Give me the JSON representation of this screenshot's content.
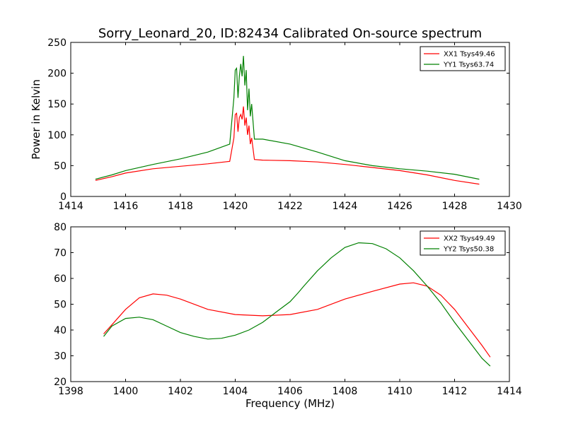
{
  "chart_data": [
    {
      "type": "line",
      "title": "Sorry_Leonard_20, ID:82434 Calibrated On-source spectrum",
      "xlabel": "",
      "ylabel": "Power in Kelvin",
      "xlim": [
        1414,
        1430
      ],
      "ylim": [
        0,
        250
      ],
      "xticks": [
        "1414",
        "1416",
        "1418",
        "1420",
        "1422",
        "1424",
        "1426",
        "1428",
        "1430"
      ],
      "yticks": [
        "0",
        "50",
        "100",
        "150",
        "200",
        "250"
      ],
      "grid": false,
      "legend_position": "top-right",
      "series": [
        {
          "name": "XX1 Tsys49.46",
          "color": "#ff0000",
          "x": [
            1414.9,
            1415.5,
            1416,
            1417,
            1418,
            1419,
            1419.8,
            1419.95,
            1420.0,
            1420.05,
            1420.1,
            1420.15,
            1420.2,
            1420.25,
            1420.3,
            1420.35,
            1420.4,
            1420.45,
            1420.5,
            1420.55,
            1420.6,
            1420.7,
            1421,
            1422,
            1423,
            1424,
            1425,
            1426,
            1427,
            1428,
            1428.9
          ],
          "values": [
            26,
            32,
            38,
            45,
            49,
            53,
            57,
            95,
            133,
            135,
            105,
            128,
            133,
            125,
            146,
            115,
            128,
            100,
            115,
            85,
            95,
            60,
            59,
            58,
            56,
            52,
            47,
            42,
            35,
            26,
            20
          ]
        },
        {
          "name": "YY1 Tsys63.74",
          "color": "#008000",
          "x": [
            1414.9,
            1415.5,
            1416,
            1417,
            1418,
            1419,
            1419.8,
            1419.95,
            1420.0,
            1420.05,
            1420.1,
            1420.15,
            1420.2,
            1420.25,
            1420.3,
            1420.35,
            1420.4,
            1420.45,
            1420.5,
            1420.55,
            1420.6,
            1420.7,
            1421,
            1422,
            1423,
            1424,
            1425,
            1426,
            1427,
            1428,
            1428.9
          ],
          "values": [
            28,
            35,
            42,
            52,
            61,
            72,
            85,
            160,
            205,
            208,
            160,
            195,
            215,
            195,
            228,
            180,
            205,
            140,
            175,
            130,
            150,
            93,
            93,
            85,
            72,
            58,
            50,
            45,
            41,
            36,
            28
          ]
        }
      ]
    },
    {
      "type": "line",
      "title": "",
      "xlabel": "Frequency (MHz)",
      "ylabel": "",
      "xlim": [
        1398,
        1414
      ],
      "ylim": [
        20,
        80
      ],
      "xticks": [
        "1398",
        "1400",
        "1402",
        "1404",
        "1406",
        "1408",
        "1410",
        "1412",
        "1414"
      ],
      "yticks": [
        "20",
        "30",
        "40",
        "50",
        "60",
        "70",
        "80"
      ],
      "grid": false,
      "legend_position": "top-right",
      "series": [
        {
          "name": "XX2 Tsys49.49",
          "color": "#ff0000",
          "x": [
            1399.2,
            1399.5,
            1400,
            1400.5,
            1401,
            1401.5,
            1402,
            1403,
            1404,
            1405,
            1406,
            1407,
            1408,
            1409,
            1410,
            1410.5,
            1411,
            1411.5,
            1412,
            1412.5,
            1413,
            1413.3
          ],
          "values": [
            38.5,
            42,
            48,
            52.5,
            54,
            53.5,
            52,
            48,
            46,
            45.5,
            46,
            48,
            52,
            55,
            57.8,
            58.3,
            57,
            53.5,
            48,
            41,
            34,
            29.5
          ]
        },
        {
          "name": "YY2 Tsys50.38",
          "color": "#008000",
          "x": [
            1399.2,
            1399.5,
            1400,
            1400.5,
            1401,
            1401.5,
            1402,
            1402.5,
            1403,
            1403.5,
            1404,
            1404.5,
            1405,
            1405.5,
            1406,
            1406.3,
            1406.5,
            1407,
            1407.5,
            1408,
            1408.5,
            1409,
            1409.5,
            1410,
            1410.5,
            1411,
            1411.5,
            1412,
            1412.5,
            1413,
            1413.3
          ],
          "values": [
            37.5,
            41.5,
            44.5,
            45,
            44,
            41.5,
            39,
            37.5,
            36.5,
            36.8,
            38,
            40,
            43,
            47,
            51,
            54.5,
            57,
            63,
            68,
            72,
            73.8,
            73.5,
            71.5,
            68,
            63,
            57,
            50.5,
            43,
            36,
            29,
            26
          ]
        }
      ]
    }
  ]
}
